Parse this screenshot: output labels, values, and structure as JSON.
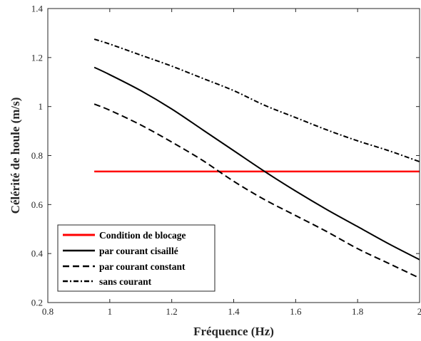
{
  "chart_data": {
    "type": "line",
    "title": "",
    "xlabel": "Fréquence (Hz)",
    "ylabel": "Célérité de houle (m/s)",
    "xlim": [
      0.8,
      2.0
    ],
    "ylim": [
      0.2,
      1.4
    ],
    "xticks": [
      0.8,
      1.0,
      1.2,
      1.4,
      1.6,
      1.8,
      2.0
    ],
    "xtick_labels": [
      "0.8",
      "1",
      "1.2",
      "1.4",
      "1.6",
      "1.8",
      "2"
    ],
    "yticks": [
      0.2,
      0.4,
      0.6,
      0.8,
      1.0,
      1.2,
      1.4
    ],
    "ytick_labels": [
      "0.2",
      "0.4",
      "0.6",
      "0.8",
      "1",
      "1.2",
      "1.4"
    ],
    "grid": false,
    "legend_position": "bottom-left",
    "series": [
      {
        "name": "Condition de blocage",
        "color": "#ff0000",
        "style": "solid",
        "x": [
          0.95,
          2.0
        ],
        "y": [
          0.735,
          0.735
        ]
      },
      {
        "name": "par courant cisaillé",
        "color": "#000000",
        "style": "solid",
        "x": [
          0.95,
          1.0,
          1.1,
          1.2,
          1.3,
          1.4,
          1.5,
          1.6,
          1.7,
          1.8,
          1.9,
          2.0
        ],
        "y": [
          1.16,
          1.13,
          1.065,
          0.99,
          0.905,
          0.82,
          0.735,
          0.655,
          0.58,
          0.51,
          0.44,
          0.375
        ]
      },
      {
        "name": "par courant constant",
        "color": "#000000",
        "style": "dashed",
        "x": [
          0.95,
          1.0,
          1.1,
          1.2,
          1.3,
          1.4,
          1.5,
          1.6,
          1.7,
          1.8,
          1.9,
          2.0
        ],
        "y": [
          1.01,
          0.985,
          0.925,
          0.855,
          0.78,
          0.695,
          0.62,
          0.555,
          0.49,
          0.42,
          0.36,
          0.3
        ]
      },
      {
        "name": "sans courant",
        "color": "#000000",
        "style": "dashdot",
        "x": [
          0.95,
          1.0,
          1.1,
          1.2,
          1.3,
          1.4,
          1.5,
          1.6,
          1.7,
          1.8,
          1.9,
          2.0
        ],
        "y": [
          1.275,
          1.255,
          1.21,
          1.165,
          1.115,
          1.065,
          1.005,
          0.955,
          0.905,
          0.86,
          0.82,
          0.775
        ]
      }
    ]
  }
}
